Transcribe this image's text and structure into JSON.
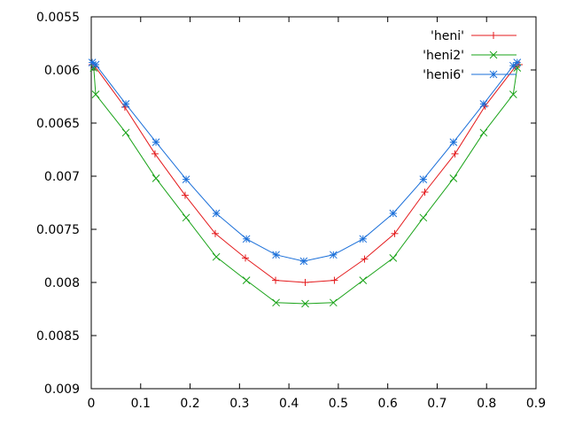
{
  "chart_data": {
    "type": "line",
    "grid": false,
    "legend_position": "top-right",
    "xlim": [
      0,
      0.9
    ],
    "ylim": [
      0.0055,
      0.009
    ],
    "y_axis_inverted": true,
    "x_ticks": [
      "0",
      "0.1",
      "0.2",
      "0.3",
      "0.4",
      "0.5",
      "0.6",
      "0.7",
      "0.8",
      "0.9"
    ],
    "y_ticks": [
      "0.0055",
      "0.006",
      "0.0065",
      "0.007",
      "0.0075",
      "0.008",
      "0.0085",
      "0.009"
    ],
    "x_tick_values": [
      0,
      0.1,
      0.2,
      0.3,
      0.4,
      0.5,
      0.6,
      0.7,
      0.8,
      0.9
    ],
    "y_tick_values": [
      0.0055,
      0.006,
      0.0065,
      0.007,
      0.0075,
      0.008,
      0.0085,
      0.009
    ],
    "series": [
      {
        "name": "'heni'",
        "color": "#e41a1c",
        "marker": "plus",
        "x": [
          0.002,
          0.008,
          0.068,
          0.129,
          0.19,
          0.251,
          0.312,
          0.373,
          0.433,
          0.492,
          0.553,
          0.614,
          0.675,
          0.736,
          0.797,
          0.858,
          0.866
        ],
        "y": [
          0.00595,
          0.00597,
          0.00635,
          0.00679,
          0.00718,
          0.00754,
          0.00777,
          0.00798,
          0.008,
          0.00798,
          0.00778,
          0.00754,
          0.00715,
          0.00679,
          0.00634,
          0.00597,
          0.00595
        ]
      },
      {
        "name": "'heni2'",
        "color": "#1aa319",
        "marker": "x",
        "x": [
          0.005,
          0.009,
          0.07,
          0.131,
          0.192,
          0.253,
          0.314,
          0.374,
          0.433,
          0.49,
          0.55,
          0.611,
          0.672,
          0.733,
          0.794,
          0.854,
          0.862
        ],
        "y": [
          0.00598,
          0.00623,
          0.00659,
          0.00702,
          0.00739,
          0.00776,
          0.00798,
          0.00819,
          0.0082,
          0.00819,
          0.00798,
          0.00777,
          0.00739,
          0.00702,
          0.00659,
          0.00623,
          0.00598
        ]
      },
      {
        "name": "'heni6'",
        "color": "#1a6fd9",
        "marker": "star",
        "x": [
          0.002,
          0.009,
          0.07,
          0.131,
          0.192,
          0.253,
          0.314,
          0.374,
          0.43,
          0.49,
          0.55,
          0.611,
          0.672,
          0.733,
          0.794,
          0.854,
          0.862
        ],
        "y": [
          0.00593,
          0.00595,
          0.00632,
          0.00668,
          0.00703,
          0.00735,
          0.00759,
          0.00774,
          0.0078,
          0.00774,
          0.00759,
          0.00735,
          0.00703,
          0.00668,
          0.00632,
          0.00596,
          0.00593
        ]
      }
    ]
  }
}
